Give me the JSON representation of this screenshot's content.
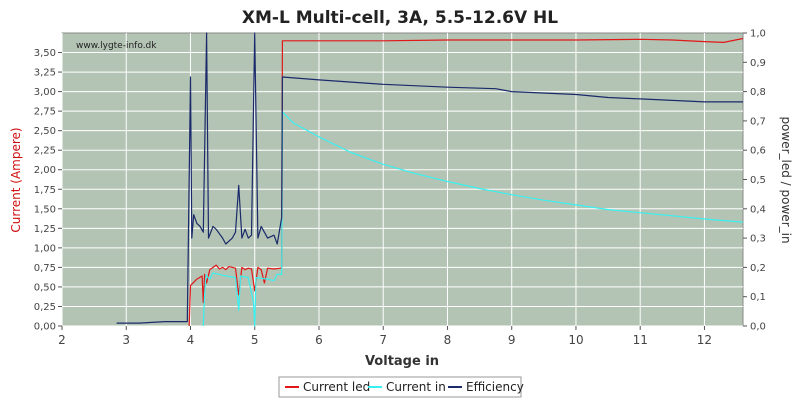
{
  "chart_data": {
    "type": "line",
    "title": "XM-L Multi-cell, 3A, 5.5-12.6V HL",
    "watermark": "www.lygte-info.dk",
    "xlabel": "Voltage in",
    "ylabel_left": "Current (Ampere)",
    "ylabel_right": "power_led / power_in",
    "xlim": [
      2,
      12.6
    ],
    "ylim_left": [
      0,
      3.75
    ],
    "ylim_right": [
      0,
      1.0
    ],
    "x_ticks": [
      "2",
      "3",
      "4",
      "5",
      "6",
      "7",
      "8",
      "9",
      "10",
      "11",
      "12"
    ],
    "y_left_ticks": [
      "0,00",
      "0,25",
      "0,50",
      "0,75",
      "1,00",
      "1,25",
      "1,50",
      "1,75",
      "2,00",
      "2,25",
      "2,50",
      "2,75",
      "3,00",
      "3,25",
      "3,50"
    ],
    "y_right_ticks": [
      "0,0",
      "0,1",
      "0,2",
      "0,3",
      "0,4",
      "0,5",
      "0,6",
      "0,7",
      "0,8",
      "0,9",
      "1,0"
    ],
    "grid": true,
    "legend_position": "bottom-center",
    "background_color": "#b4c4b4",
    "series": [
      {
        "name": "Current led",
        "axis": "left",
        "color": "#e01818",
        "points": [
          [
            3.98,
            0.0
          ],
          [
            4.0,
            0.52
          ],
          [
            4.1,
            0.6
          ],
          [
            4.18,
            0.64
          ],
          [
            4.2,
            0.3
          ],
          [
            4.22,
            0.66
          ],
          [
            4.25,
            0.55
          ],
          [
            4.3,
            0.72
          ],
          [
            4.35,
            0.75
          ],
          [
            4.4,
            0.78
          ],
          [
            4.45,
            0.73
          ],
          [
            4.5,
            0.75
          ],
          [
            4.55,
            0.72
          ],
          [
            4.6,
            0.76
          ],
          [
            4.7,
            0.74
          ],
          [
            4.75,
            0.4
          ],
          [
            4.8,
            0.75
          ],
          [
            4.85,
            0.72
          ],
          [
            4.9,
            0.74
          ],
          [
            4.95,
            0.73
          ],
          [
            5.0,
            0.45
          ],
          [
            5.05,
            0.75
          ],
          [
            5.1,
            0.72
          ],
          [
            5.15,
            0.55
          ],
          [
            5.2,
            0.74
          ],
          [
            5.3,
            0.73
          ],
          [
            5.4,
            0.74
          ],
          [
            5.42,
            0.75
          ],
          [
            5.43,
            3.65
          ],
          [
            6.0,
            3.65
          ],
          [
            7.0,
            3.65
          ],
          [
            8.0,
            3.66
          ],
          [
            9.0,
            3.66
          ],
          [
            10.0,
            3.66
          ],
          [
            11.0,
            3.67
          ],
          [
            11.5,
            3.66
          ],
          [
            12.0,
            3.64
          ],
          [
            12.3,
            3.63
          ],
          [
            12.6,
            3.68
          ]
        ]
      },
      {
        "name": "Current in",
        "axis": "left",
        "color": "#38f0f0",
        "points": [
          [
            4.2,
            0.0
          ],
          [
            4.22,
            0.4
          ],
          [
            4.24,
            0.65
          ],
          [
            4.3,
            0.6
          ],
          [
            4.35,
            0.68
          ],
          [
            4.5,
            0.65
          ],
          [
            4.7,
            0.62
          ],
          [
            4.75,
            0.2
          ],
          [
            4.78,
            0.64
          ],
          [
            4.9,
            0.62
          ],
          [
            4.98,
            0.3
          ],
          [
            5.0,
            0.0
          ],
          [
            5.02,
            0.62
          ],
          [
            5.2,
            0.6
          ],
          [
            5.3,
            0.58
          ],
          [
            5.35,
            0.66
          ],
          [
            5.42,
            0.66
          ],
          [
            5.43,
            2.74
          ],
          [
            5.6,
            2.6
          ],
          [
            6.0,
            2.42
          ],
          [
            6.5,
            2.22
          ],
          [
            7.0,
            2.07
          ],
          [
            7.5,
            1.95
          ],
          [
            8.0,
            1.85
          ],
          [
            8.5,
            1.76
          ],
          [
            9.0,
            1.68
          ],
          [
            9.5,
            1.61
          ],
          [
            10.0,
            1.55
          ],
          [
            10.5,
            1.49
          ],
          [
            11.0,
            1.45
          ],
          [
            11.5,
            1.41
          ],
          [
            12.0,
            1.37
          ],
          [
            12.6,
            1.33
          ]
        ]
      },
      {
        "name": "Efficiency",
        "axis": "right",
        "color": "#1a2a6a",
        "points": [
          [
            2.85,
            0.01
          ],
          [
            3.2,
            0.01
          ],
          [
            3.6,
            0.015
          ],
          [
            3.95,
            0.015
          ],
          [
            4.0,
            0.85
          ],
          [
            4.02,
            0.3
          ],
          [
            4.05,
            0.38
          ],
          [
            4.1,
            0.35
          ],
          [
            4.15,
            0.34
          ],
          [
            4.2,
            0.32
          ],
          [
            4.25,
            1.0
          ],
          [
            4.28,
            0.3
          ],
          [
            4.35,
            0.34
          ],
          [
            4.4,
            0.33
          ],
          [
            4.5,
            0.3
          ],
          [
            4.55,
            0.28
          ],
          [
            4.65,
            0.3
          ],
          [
            4.7,
            0.32
          ],
          [
            4.75,
            0.48
          ],
          [
            4.8,
            0.3
          ],
          [
            4.85,
            0.33
          ],
          [
            4.9,
            0.3
          ],
          [
            4.95,
            0.31
          ],
          [
            5.0,
            1.0
          ],
          [
            5.05,
            0.3
          ],
          [
            5.1,
            0.34
          ],
          [
            5.2,
            0.3
          ],
          [
            5.3,
            0.31
          ],
          [
            5.35,
            0.28
          ],
          [
            5.42,
            0.37
          ],
          [
            5.43,
            0.85
          ],
          [
            6.0,
            0.84
          ],
          [
            7.0,
            0.825
          ],
          [
            8.0,
            0.815
          ],
          [
            8.75,
            0.81
          ],
          [
            9.0,
            0.8
          ],
          [
            10.0,
            0.79
          ],
          [
            10.5,
            0.78
          ],
          [
            11.0,
            0.775
          ],
          [
            12.0,
            0.765
          ],
          [
            12.6,
            0.765
          ]
        ]
      }
    ]
  }
}
